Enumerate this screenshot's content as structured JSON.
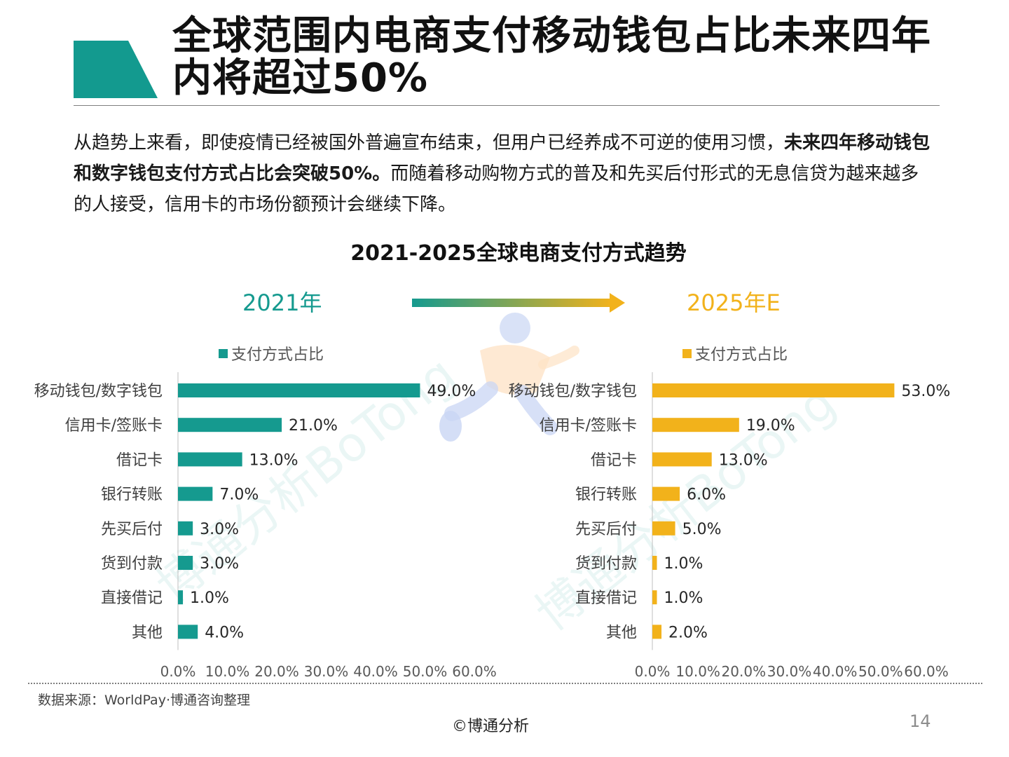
{
  "page": {
    "title": "全球范围内电商支付移动钱包占比未来四年内将超过50%",
    "intro_prefix": "从趋势上来看，即使疫情已经被国外普遍宣布结束，但用户已经养成不可逆的使用习惯，",
    "intro_bold": "未来四年移动钱包和数字钱包支付方式占比会突破50%。",
    "intro_suffix": "而随着移动购物方式的普及和先买后付形式的无息信贷为越来越多的人接受，信用卡的市场份额预计会继续下降。",
    "source": "数据来源：WorldPay·博通咨询整理",
    "copyright": "©博通分析",
    "page_number": "14",
    "watermark": "博通分析BoTong"
  },
  "colors": {
    "teal": "#159a8f",
    "gold": "#f2b21b",
    "title_block": "#139a8f"
  },
  "chart_data": [
    {
      "type": "bar",
      "orientation": "horizontal",
      "title": "2021-2025全球电商支付方式趋势",
      "panel_label": "2021年",
      "legend": "支付方式占比",
      "categories": [
        "移动钱包/数字钱包",
        "信用卡/签账卡",
        "借记卡",
        "银行转账",
        "先买后付",
        "货到付款",
        "直接借记",
        "其他"
      ],
      "values": [
        49.0,
        21.0,
        13.0,
        7.0,
        3.0,
        3.0,
        1.0,
        4.0
      ],
      "value_labels": [
        "49.0%",
        "21.0%",
        "13.0%",
        "7.0%",
        "3.0%",
        "3.0%",
        "1.0%",
        "4.0%"
      ],
      "xlim": [
        0,
        60
      ],
      "x_ticks": [
        "0.0%",
        "10.0%",
        "20.0%",
        "30.0%",
        "40.0%",
        "50.0%",
        "60.0%"
      ],
      "color": "#159a8f"
    },
    {
      "type": "bar",
      "orientation": "horizontal",
      "panel_label": "2025年E",
      "legend": "支付方式占比",
      "categories": [
        "移动钱包/数字钱包",
        "信用卡/签账卡",
        "借记卡",
        "银行转账",
        "先买后付",
        "货到付款",
        "直接借记",
        "其他"
      ],
      "values": [
        53.0,
        19.0,
        13.0,
        6.0,
        5.0,
        1.0,
        1.0,
        2.0
      ],
      "value_labels": [
        "53.0%",
        "19.0%",
        "13.0%",
        "6.0%",
        "5.0%",
        "1.0%",
        "1.0%",
        "2.0%"
      ],
      "xlim": [
        0,
        60
      ],
      "x_ticks": [
        "0.0%",
        "10.0%",
        "20.0%",
        "30.0%",
        "40.0%",
        "50.0%",
        "60.0%"
      ],
      "color": "#f2b21b"
    }
  ]
}
